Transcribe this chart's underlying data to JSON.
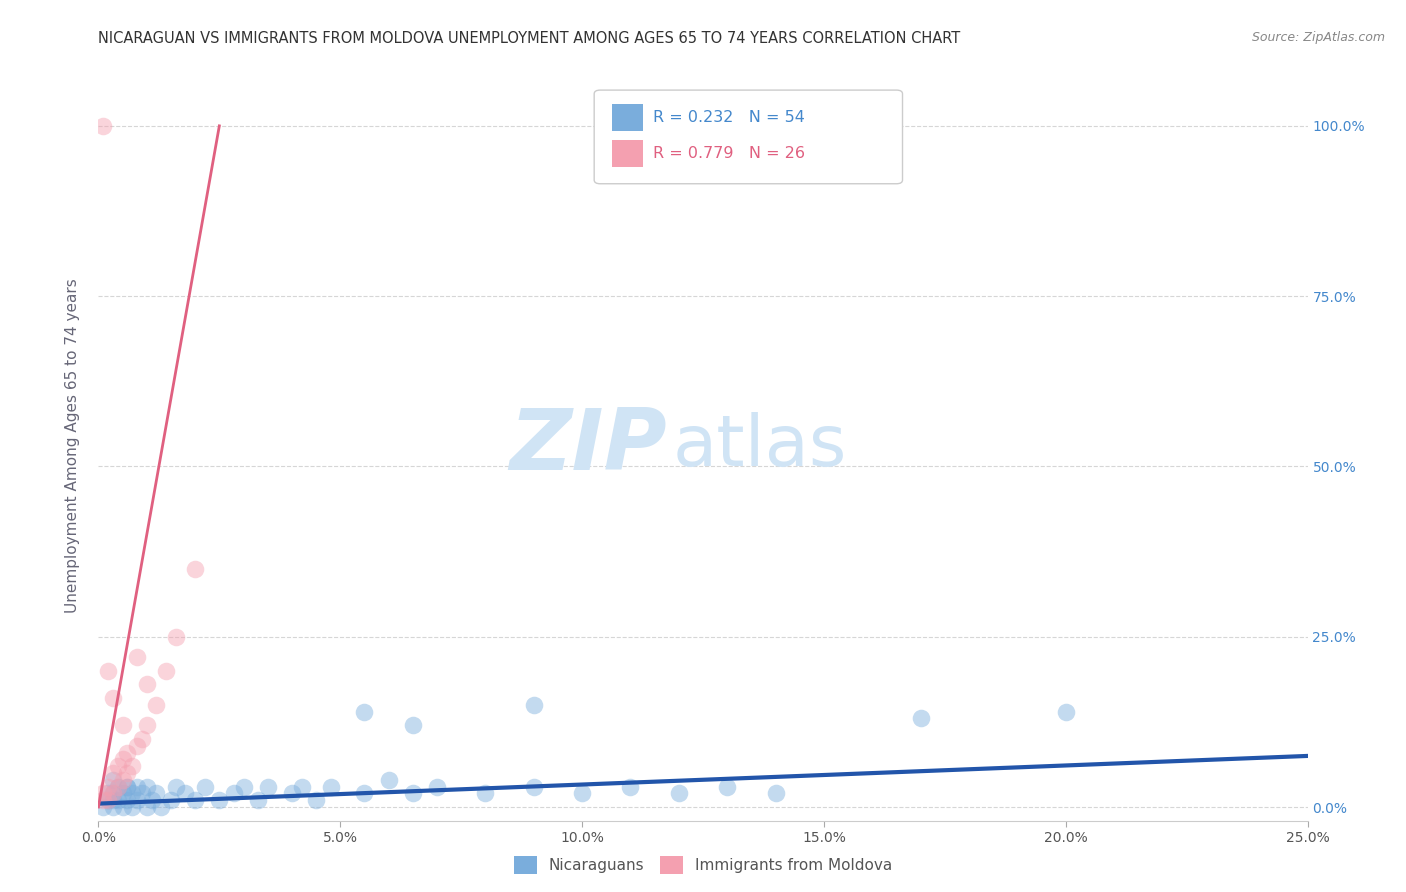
{
  "title": "NICARAGUAN VS IMMIGRANTS FROM MOLDOVA UNEMPLOYMENT AMONG AGES 65 TO 74 YEARS CORRELATION CHART",
  "source": "Source: ZipAtlas.com",
  "ylabel": "Unemployment Among Ages 65 to 74 years",
  "xlim": [
    0.0,
    0.25
  ],
  "ylim": [
    -0.02,
    1.08
  ],
  "xtick_labels": [
    "0.0%",
    "5.0%",
    "10.0%",
    "15.0%",
    "20.0%",
    "25.0%"
  ],
  "xtick_vals": [
    0.0,
    0.05,
    0.1,
    0.15,
    0.2,
    0.25
  ],
  "ytick_labels": [
    "100.0%",
    "75.0%",
    "50.0%",
    "25.0%",
    "0.0%"
  ],
  "ytick_vals": [
    1.0,
    0.75,
    0.5,
    0.25,
    0.0
  ],
  "legend_blue_label": "Nicaraguans",
  "legend_pink_label": "Immigrants from Moldova",
  "R_blue": 0.232,
  "N_blue": 54,
  "R_pink": 0.779,
  "N_pink": 26,
  "blue_color": "#7aaddc",
  "pink_color": "#f4a0b0",
  "trendline_blue_color": "#2255aa",
  "trendline_pink_color": "#e06080",
  "watermark_zip": "ZIP",
  "watermark_atlas": "atlas",
  "watermark_color": "#d0e4f5",
  "background_color": "#ffffff",
  "grid_color": "#cccccc",
  "title_color": "#333333",
  "axis_label_color": "#666677",
  "right_ytick_color": "#4488cc",
  "blue_scatter_x": [
    0.001,
    0.002,
    0.002,
    0.003,
    0.003,
    0.003,
    0.004,
    0.004,
    0.005,
    0.005,
    0.006,
    0.006,
    0.007,
    0.007,
    0.008,
    0.008,
    0.009,
    0.01,
    0.01,
    0.011,
    0.012,
    0.013,
    0.015,
    0.016,
    0.018,
    0.02,
    0.022,
    0.025,
    0.028,
    0.03,
    0.033,
    0.035,
    0.04,
    0.042,
    0.045,
    0.048,
    0.055,
    0.06,
    0.065,
    0.07,
    0.08,
    0.09,
    0.1,
    0.11,
    0.12,
    0.13,
    0.14,
    0.055,
    0.065,
    0.2,
    0.003,
    0.006,
    0.17,
    0.09
  ],
  "blue_scatter_y": [
    0.0,
    0.01,
    0.02,
    0.0,
    0.01,
    0.02,
    0.01,
    0.03,
    0.0,
    0.02,
    0.01,
    0.03,
    0.0,
    0.02,
    0.01,
    0.03,
    0.02,
    0.0,
    0.03,
    0.01,
    0.02,
    0.0,
    0.01,
    0.03,
    0.02,
    0.01,
    0.03,
    0.01,
    0.02,
    0.03,
    0.01,
    0.03,
    0.02,
    0.03,
    0.01,
    0.03,
    0.02,
    0.04,
    0.02,
    0.03,
    0.02,
    0.03,
    0.02,
    0.03,
    0.02,
    0.03,
    0.02,
    0.14,
    0.12,
    0.14,
    0.04,
    0.03,
    0.13,
    0.15
  ],
  "pink_scatter_x": [
    0.001,
    0.001,
    0.002,
    0.002,
    0.003,
    0.003,
    0.004,
    0.004,
    0.005,
    0.005,
    0.006,
    0.006,
    0.007,
    0.008,
    0.009,
    0.01,
    0.012,
    0.014,
    0.016,
    0.02,
    0.003,
    0.005,
    0.008,
    0.01,
    0.002,
    0.001
  ],
  "pink_scatter_y": [
    0.01,
    0.02,
    0.01,
    0.03,
    0.02,
    0.05,
    0.03,
    0.06,
    0.04,
    0.07,
    0.05,
    0.08,
    0.06,
    0.09,
    0.1,
    0.12,
    0.15,
    0.2,
    0.25,
    0.35,
    0.16,
    0.12,
    0.22,
    0.18,
    0.2,
    1.0
  ],
  "blue_trendline_x": [
    0.0,
    0.25
  ],
  "blue_trendline_y": [
    0.005,
    0.075
  ],
  "pink_trendline_x": [
    0.0,
    0.025
  ],
  "pink_trendline_y": [
    0.0,
    1.0
  ]
}
